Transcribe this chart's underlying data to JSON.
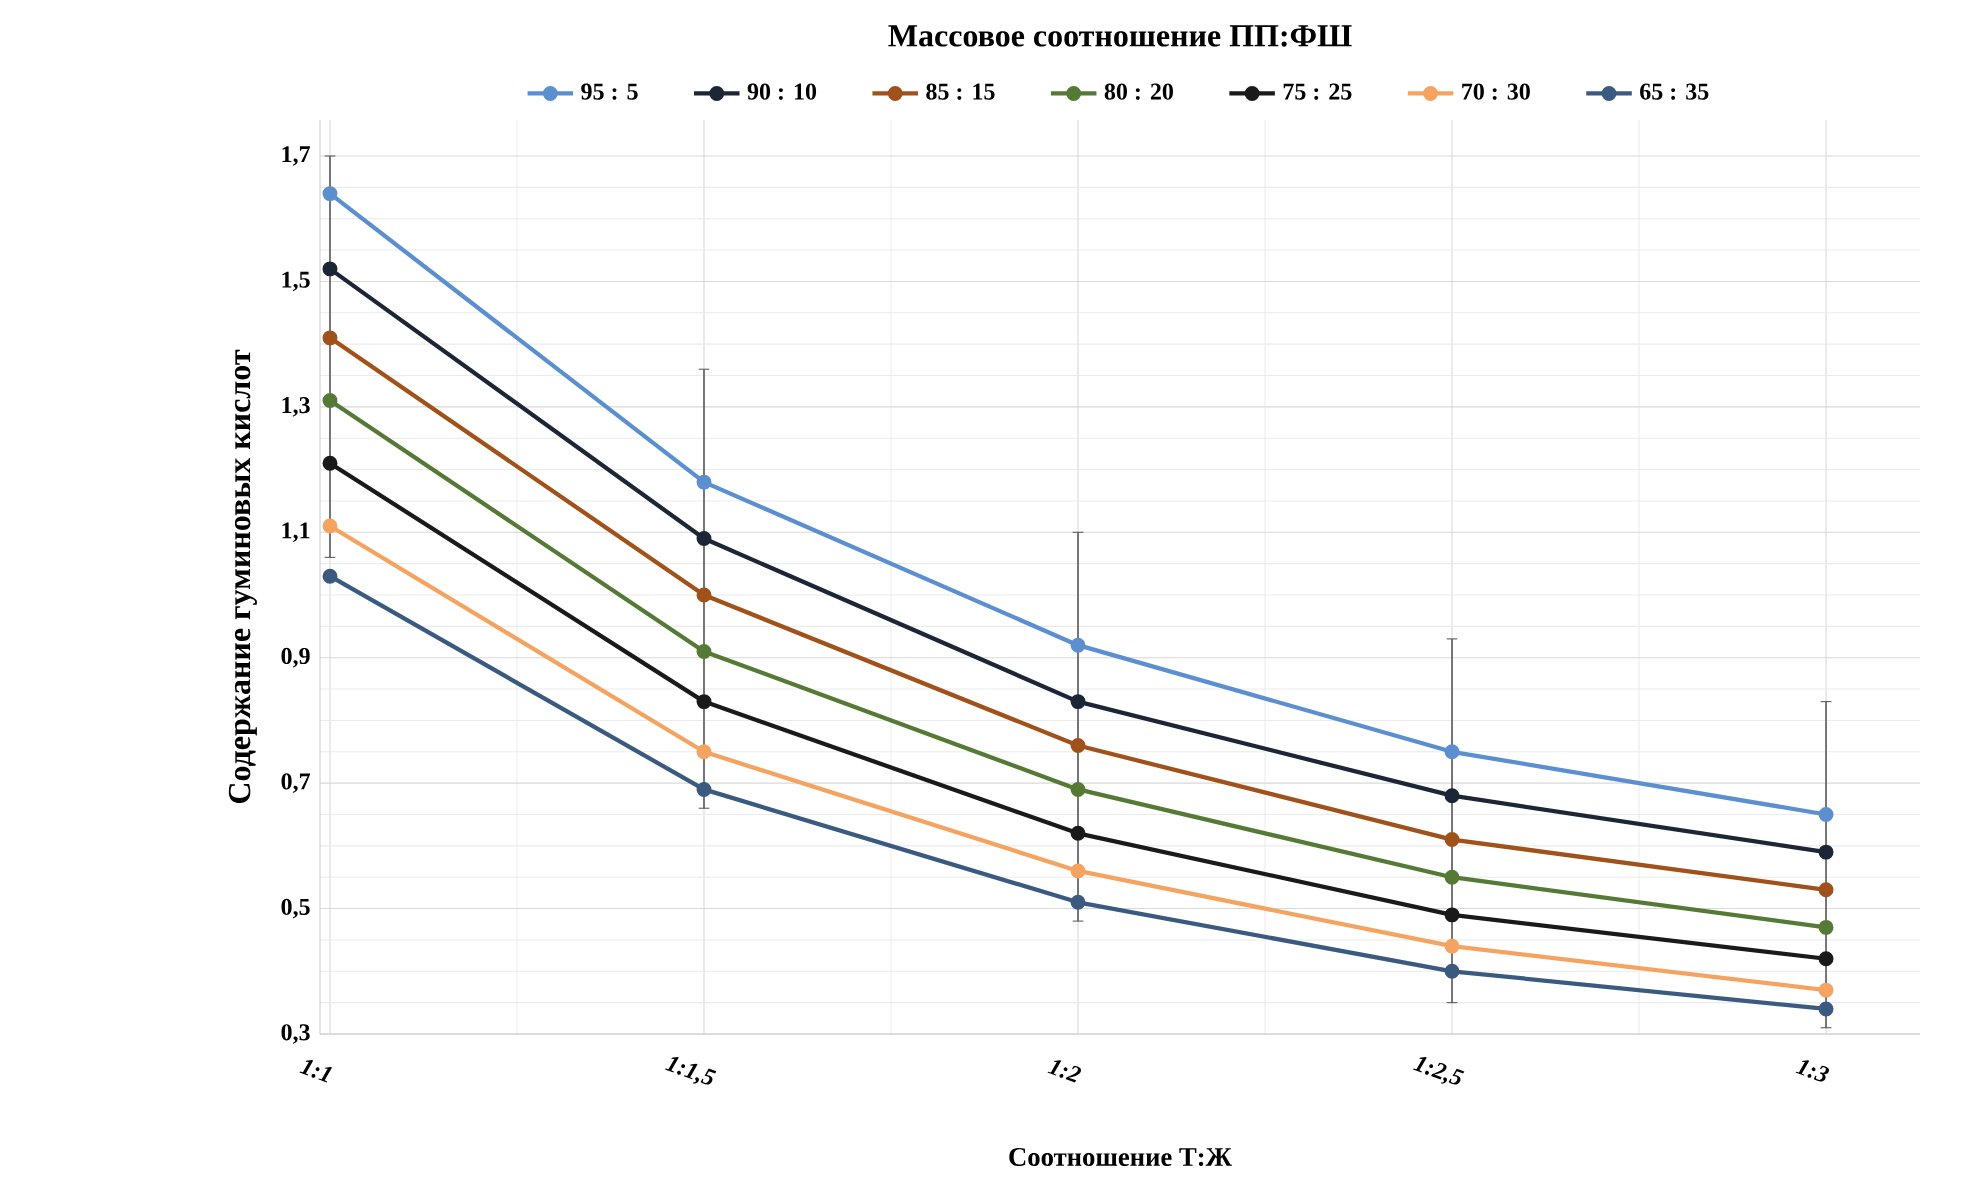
{
  "chart_data": {
    "type": "line",
    "legend_title": "Массовое соотношение ПП:ФШ",
    "xlabel": "Соотношение Т:Ж",
    "ylabel": "Содержание гуминовых кислот",
    "categories": [
      "1:1",
      "1:1,5",
      "1:2",
      "1:2,5",
      "1:3"
    ],
    "series": [
      {
        "name": "95 : 5",
        "color": "#5b8fd0",
        "values": [
          1.64,
          1.18,
          0.92,
          0.75,
          0.65
        ],
        "errors": [
          [
            1.06,
            1.7
          ],
          [
            0.66,
            1.36
          ],
          [
            0.48,
            1.1
          ],
          [
            0.35,
            0.93
          ],
          [
            0.31,
            0.83
          ]
        ]
      },
      {
        "name": "90 : 10",
        "color": "#1c2636",
        "values": [
          1.52,
          1.09,
          0.83,
          0.68,
          0.59
        ]
      },
      {
        "name": "85 : 15",
        "color": "#a0521a",
        "values": [
          1.41,
          1.0,
          0.76,
          0.61,
          0.53
        ]
      },
      {
        "name": "80 : 20",
        "color": "#557a35",
        "values": [
          1.31,
          0.91,
          0.69,
          0.55,
          0.47
        ]
      },
      {
        "name": "75 : 25",
        "color": "#1a1a1a",
        "values": [
          1.21,
          0.83,
          0.62,
          0.49,
          0.42
        ]
      },
      {
        "name": "70 : 30",
        "color": "#f4a460",
        "values": [
          1.11,
          0.75,
          0.56,
          0.44,
          0.37
        ]
      },
      {
        "name": "65 : 35",
        "color": "#3a5a80",
        "values": [
          1.03,
          0.69,
          0.51,
          0.4,
          0.34
        ]
      }
    ],
    "ylim": [
      0.3,
      1.7
    ],
    "yticks": [
      {
        "value": 0.3,
        "label": "0,3"
      },
      {
        "value": 0.5,
        "label": "0,5"
      },
      {
        "value": 0.7,
        "label": "0,7"
      },
      {
        "value": 0.9,
        "label": "0,9"
      },
      {
        "value": 1.1,
        "label": "1,1"
      },
      {
        "value": 1.3,
        "label": "1,3"
      },
      {
        "value": 1.5,
        "label": "1,5"
      },
      {
        "value": 1.7,
        "label": "1,7"
      }
    ],
    "grid": true,
    "legend": "top",
    "marker": "circle",
    "line_style": "solid"
  }
}
